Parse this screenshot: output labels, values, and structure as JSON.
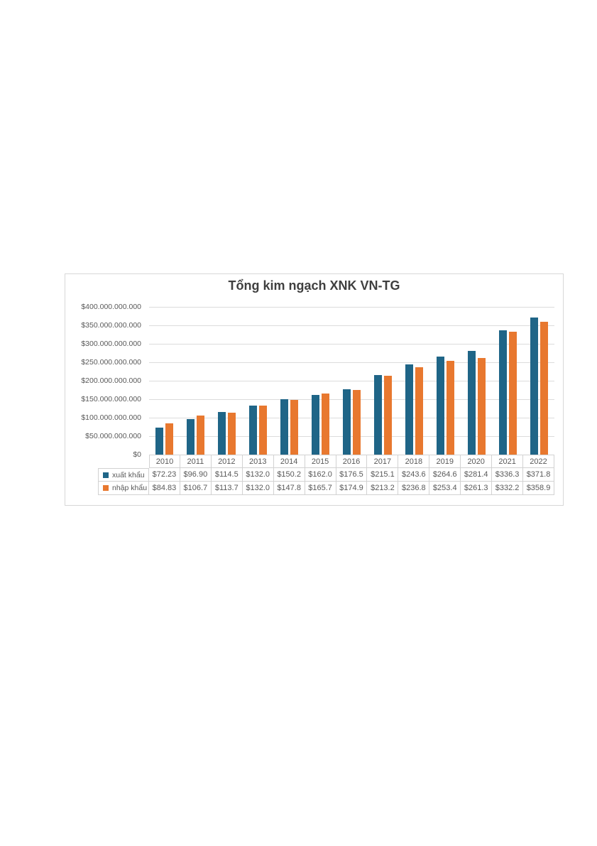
{
  "page": {
    "background": "#ffffff"
  },
  "chart_data": {
    "type": "bar",
    "title": "Tổng kim ngạch XNK VN-TG",
    "categories": [
      "2010",
      "2011",
      "2012",
      "2013",
      "2014",
      "2015",
      "2016",
      "2017",
      "2018",
      "2019",
      "2020",
      "2021",
      "2022"
    ],
    "series": [
      {
        "name": "xuất khẩu",
        "color": "#1F6587",
        "values_billions_usd": [
          72.23,
          96.9,
          114.5,
          132.0,
          150.2,
          162.0,
          176.5,
          215.1,
          243.6,
          264.6,
          281.4,
          336.3,
          371.8
        ],
        "table_display": [
          "$72.23",
          "$96.90",
          "$114.5",
          "$132.0",
          "$150.2",
          "$162.0",
          "$176.5",
          "$215.1",
          "$243.6",
          "$264.6",
          "$281.4",
          "$336.3",
          "$371.8"
        ]
      },
      {
        "name": "nhập khẩu",
        "color": "#E8782F",
        "values_billions_usd": [
          84.83,
          106.7,
          113.7,
          132.0,
          147.8,
          165.7,
          174.9,
          213.2,
          236.8,
          253.4,
          261.3,
          332.2,
          358.9
        ],
        "table_display": [
          "$84.83",
          "$106.7",
          "$113.7",
          "$132.0",
          "$147.8",
          "$165.7",
          "$174.9",
          "$213.2",
          "$236.8",
          "$253.4",
          "$261.3",
          "$332.2",
          "$358.9"
        ]
      }
    ],
    "xlabel": "",
    "ylabel": "",
    "ylim_billions_usd": [
      0,
      400
    ],
    "y_tick_step_billions_usd": 50,
    "y_tick_labels_bottom_up": [
      "$0",
      "$50.000.000.000",
      "$100.000.000.000",
      "$150.000.000.000",
      "$200.000.000.000",
      "$250.000.000.000",
      "$300.000.000.000",
      "$350.000.000.000",
      "$400.000.000.000"
    ],
    "grid": true,
    "legend_position": "data-table-left",
    "colors": {
      "gridline": "#dcdcdc",
      "table_border": "#d2d2d2",
      "text": "#595959",
      "title_text": "#3f3f3f"
    }
  }
}
